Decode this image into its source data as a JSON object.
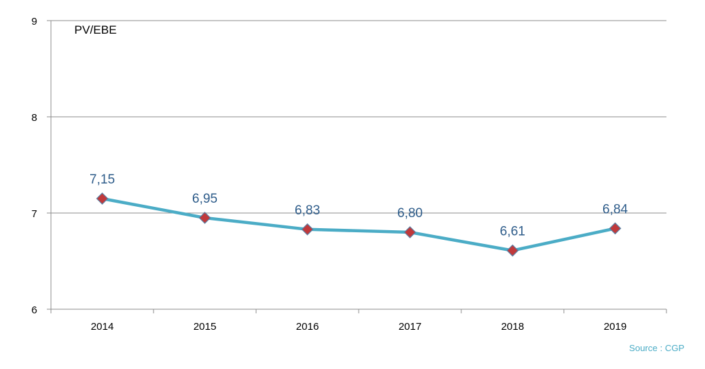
{
  "chart_data": {
    "type": "line",
    "ylabel": "PV/EBE",
    "categories": [
      "2014",
      "2015",
      "2016",
      "2017",
      "2018",
      "2019"
    ],
    "series": [
      {
        "values": [
          7.15,
          6.95,
          6.83,
          6.8,
          6.61,
          6.84
        ]
      }
    ],
    "data_labels": [
      "7,15",
      "6,95",
      "6,83",
      "6,80",
      "6,61",
      "6,84"
    ],
    "ylim": [
      6,
      9
    ],
    "yticks": [
      "6",
      "7",
      "8",
      "9"
    ],
    "grid": true,
    "line_color": "#4bacc6",
    "marker_color": "#c0393b",
    "marker_shape": "diamond",
    "data_label_color": "#2e5c8a"
  },
  "source": "Source : CGP"
}
